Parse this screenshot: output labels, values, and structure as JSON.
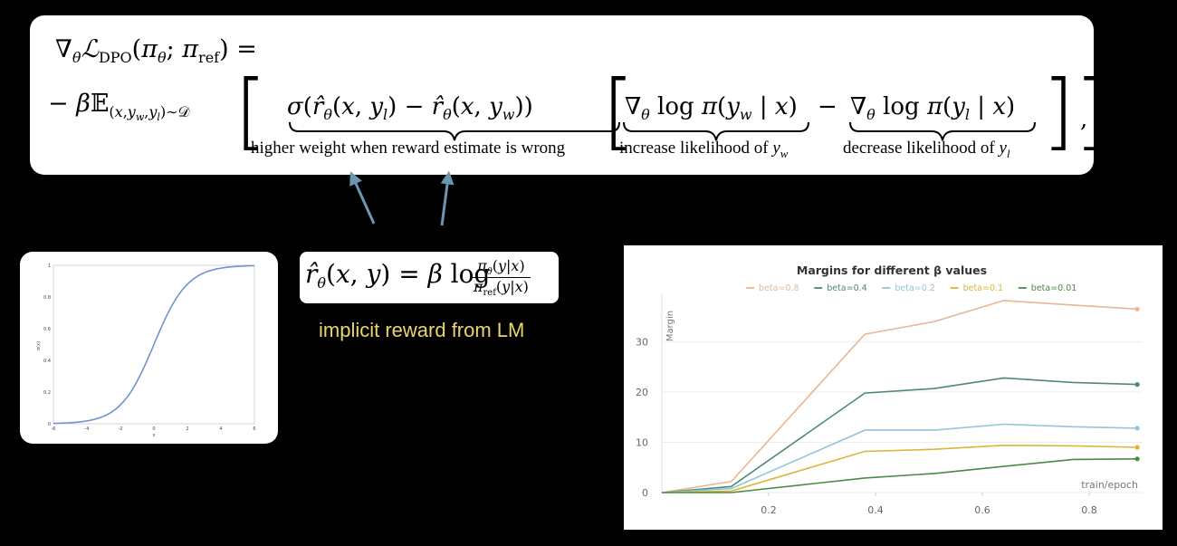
{
  "equation": {
    "lhs": "∇θℒDPO(πθ; πref) =",
    "term_sigma": "σ(r̂θ(x, yl) − r̂θ(x, yw))",
    "term_grad_w": "∇θ log π(yw | x)",
    "term_grad_l": "∇θ log π(yl | x)",
    "label_weight": "higher weight when reward estimate is wrong",
    "label_increase": "increase likelihood of",
    "label_increase_var": "y",
    "label_increase_sub": "w",
    "label_decrease": "decrease likelihood of",
    "label_decrease_var": "y",
    "label_decrease_sub": "l"
  },
  "reward_formula": {
    "text": "r̂θ(x, y) = β log πθ(y|x) / πref(y|x)",
    "caption": "implicit reward from LM"
  },
  "colors": {
    "arrow": "#6a97ad",
    "caption": "#e9d66b",
    "sigmoid_line": "#6f95cc"
  },
  "sigmoid_plot": {
    "x_ticks": [
      "-6",
      "-4",
      "-2",
      "0",
      "2",
      "4",
      "6"
    ],
    "y_ticks": [
      "0",
      "0.2",
      "0.4",
      "0.6",
      "0.8",
      "1"
    ],
    "xlabel": "x",
    "ylabel": "σ(x)"
  },
  "chart_data": {
    "type": "line",
    "title": "Margins for different β values",
    "xlabel": "train/epoch",
    "ylabel": "Margin",
    "xlim": [
      0,
      0.9
    ],
    "ylim": [
      0,
      38
    ],
    "x_ticks": [
      "0.2",
      "0.4",
      "0.6",
      "0.8"
    ],
    "y_ticks": [
      "0",
      "10",
      "20",
      "30"
    ],
    "grid": true,
    "legend_position": "top",
    "x": [
      0,
      0.13,
      0.38,
      0.51,
      0.64,
      0.77,
      0.89
    ],
    "series": [
      {
        "name": "beta=0.8",
        "color": "#e8b794",
        "values": [
          0,
          2.2,
          31.5,
          34,
          38.2,
          37.3,
          36.5
        ]
      },
      {
        "name": "beta=0.4",
        "color": "#4e8a6e",
        "values": [
          0,
          1.2,
          19.8,
          20.7,
          22.8,
          21.9,
          21.5
        ]
      },
      {
        "name": "beta=0.2",
        "color": "#93c4dc",
        "values": [
          0,
          0.8,
          12.4,
          12.4,
          13.6,
          13.1,
          12.8
        ]
      },
      {
        "name": "beta=0.1",
        "color": "#dcb63a",
        "values": [
          0,
          0.3,
          8.2,
          8.6,
          9.4,
          9.3,
          9.0
        ]
      },
      {
        "name": "beta=0.01",
        "color": "#4b8a45",
        "values": [
          0,
          0,
          2.9,
          3.8,
          5.2,
          6.6,
          6.7
        ]
      }
    ]
  }
}
